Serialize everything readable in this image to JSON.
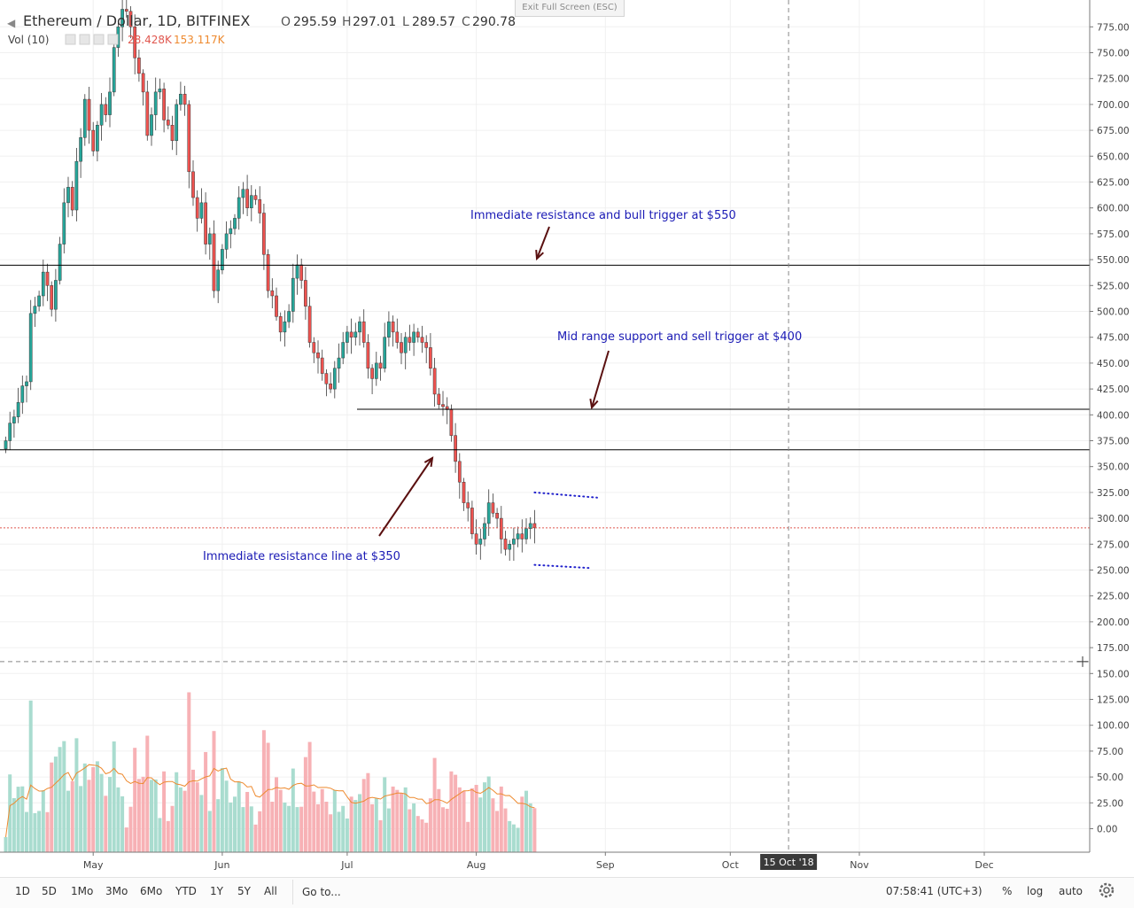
{
  "header": {
    "title": "Ethereum / Dollar, 1D, BITFINEX",
    "o_label": "O",
    "o_value": "295.59",
    "h_label": "H",
    "h_value": "297.01",
    "l_label": "L",
    "l_value": "289.57",
    "c_label": "C",
    "c_value": "290.78",
    "vol_label": "Vol (10)",
    "vol_value1": "28.428K",
    "vol_value2": "153.117K",
    "exit_fullscreen": "Exit Full Screen (ESC)"
  },
  "colors": {
    "up": "#26a69a",
    "down": "#ef5350",
    "wick": "#3a3a3a",
    "vol_up": "#a9dccf",
    "vol_down": "#f7b1b5",
    "vol_ma": "#ee8a2f",
    "annotation_text": "#1a1ab5",
    "arrow": "#5a1010",
    "dotted": "#2222cc",
    "price_tag": "#e0574f"
  },
  "chart_data": {
    "type": "candlestick",
    "title": "Ethereum / Dollar, 1D, BITFINEX",
    "x_start": "2018-04-10",
    "x_axis_labels": [
      "May",
      "Jun",
      "Jul",
      "Aug",
      "Sep",
      "Oct",
      "15 Oct '18",
      "Nov",
      "Dec"
    ],
    "y_axis_ticks": [
      0,
      25,
      50,
      75,
      100,
      125,
      150,
      175,
      200,
      225,
      250,
      275,
      300,
      325,
      350,
      375,
      400,
      425,
      450,
      475,
      500,
      525,
      550,
      575,
      600,
      625,
      650,
      675,
      700,
      725,
      750,
      775
    ],
    "y_axis_tick_labels": [
      "0.00",
      "25.00",
      "50.00",
      "75.00",
      "100.00",
      "125.00",
      "150.00",
      "175.00",
      "200.00",
      "225.00",
      "250.00",
      "275.00",
      "300.00",
      "325.00",
      "350.00",
      "375.00",
      "400.00",
      "425.00",
      "450.00",
      "475.00",
      "500.00",
      "525.00",
      "550.00",
      "575.00",
      "600.00",
      "625.00",
      "650.00",
      "675.00",
      "700.00",
      "725.00",
      "750.00",
      "775.00"
    ],
    "close": [
      375,
      392,
      398,
      412,
      428,
      432,
      498,
      505,
      515,
      538,
      525,
      502,
      530,
      565,
      605,
      620,
      598,
      645,
      668,
      705,
      675,
      655,
      680,
      700,
      690,
      712,
      755,
      775,
      792,
      790,
      775,
      745,
      730,
      712,
      670,
      690,
      712,
      715,
      685,
      680,
      665,
      700,
      710,
      700,
      635,
      610,
      590,
      605,
      565,
      575,
      520,
      540,
      560,
      575,
      580,
      590,
      610,
      618,
      600,
      612,
      608,
      595,
      555,
      520,
      515,
      495,
      480,
      490,
      500,
      532,
      545,
      530,
      505,
      470,
      460,
      455,
      440,
      430,
      425,
      445,
      455,
      470,
      480,
      475,
      480,
      490,
      470,
      445,
      435,
      450,
      445,
      475,
      490,
      480,
      470,
      460,
      475,
      470,
      480,
      475,
      470,
      465,
      445,
      420,
      410,
      408,
      405,
      380,
      355,
      335,
      315,
      310,
      285,
      275,
      280,
      295,
      315,
      305,
      300,
      280,
      270,
      275,
      280,
      285,
      280,
      290,
      295,
      290.78
    ],
    "volume_ma_label": "Vol (10)",
    "volume_last": "28.428K",
    "volume_ma_last": "153.117K",
    "horizontal_lines": [
      {
        "value": 544.63,
        "label": "544.63"
      },
      {
        "value": 405.35,
        "label": "405.35"
      },
      {
        "value": 366.21,
        "label": "366.21"
      },
      {
        "value": 290.78,
        "label": "290.78",
        "style": "dotted-red"
      },
      {
        "value": 161.51,
        "label": "161.51",
        "style": "dashed-crosshair"
      }
    ],
    "annotations": [
      "Immediate resistance and bull trigger at $550",
      "Mid range support and sell trigger at $400",
      "Immediate resistance line at $350"
    ],
    "crosshair_date": "15 Oct '18",
    "grid": true
  },
  "bottom": {
    "ranges": [
      "1D",
      "5D",
      "1Mo",
      "3Mo",
      "6Mo",
      "YTD",
      "1Y",
      "5Y",
      "All"
    ],
    "goto": "Go to...",
    "clock": "07:58:41 (UTC+3)",
    "toggles": [
      "%",
      "log",
      "auto"
    ]
  }
}
